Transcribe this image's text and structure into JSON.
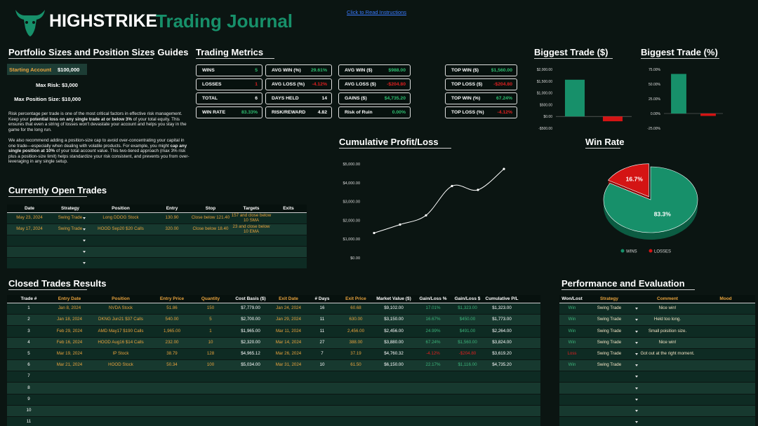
{
  "header": {
    "brand": "HIGHSTRIKE",
    "title": "Trading Journal",
    "link": "Click to Read Instructions"
  },
  "portfolio": {
    "title": "Portfolio Sizes and Position Sizes Guides",
    "rows": [
      [
        "Starting Account",
        "$100,000"
      ],
      [
        "Max Risk:",
        "$3,000"
      ],
      [
        "Max Position Size:",
        "$10,000"
      ]
    ],
    "paragraphs": [
      [
        "Risk percentage per trade is one of the most critical factors in effective risk management. Keep your ",
        "potential loss on any single trade at or below 3%",
        " of your total equity. This ensures that even a string of losses won't devastate your account and helps you stay in the game for the long run."
      ],
      [
        "We also recommend adding a position-size cap to avoid over-concentrating your capital in one trade—especially when dealing with volatile products. For example, you might ",
        "cap any single position at 10%",
        " of your total account value. This two-tiered approach (max 3% risk plus a position-size limit) helps standardize your risk consistent, and prevents you from over-leveraging in any single setup."
      ]
    ]
  },
  "metrics": {
    "title": "Trading Metrics",
    "columns": [
      [
        {
          "label": "WINS",
          "value": "5",
          "color": "#2fbf71"
        },
        {
          "label": "LOSSES",
          "value": "1",
          "color": "#e02020"
        },
        {
          "label": "TOTAL",
          "value": "6",
          "color": "#ffffff"
        },
        {
          "label": "WIN RATE",
          "value": "83.33%",
          "color": "#2fbf71"
        }
      ],
      [
        {
          "label": "AVG WIN (%)",
          "value": "29.61%",
          "color": "#2fbf71"
        },
        {
          "label": "AVG LOSS (%)",
          "value": "-4.12%",
          "color": "#e02020"
        },
        {
          "label": "DAYS HELD",
          "value": "14",
          "color": "#ffffff"
        },
        {
          "label": "RISK/REWARD",
          "value": "4.82",
          "color": "#ffffff"
        }
      ],
      [
        {
          "label": "AVG WIN ($)",
          "value": "$988.00",
          "color": "#2fbf71"
        },
        {
          "label": "AVG LOSS ($)",
          "value": "-$204.80",
          "color": "#e02020"
        },
        {
          "label": "GAINS ($)",
          "value": "$4,735.20",
          "color": "#2fbf71"
        },
        {
          "label": "Risk of Ruin",
          "value": "0.00%",
          "color": "#2fbf71"
        }
      ],
      [
        {
          "label": "TOP WIN ($)",
          "value": "$1,560.00",
          "color": "#2fbf71"
        },
        {
          "label": "TOP LOSS ($)",
          "value": "-$204.80",
          "color": "#e02020"
        },
        {
          "label": "TOP WIN (%)",
          "value": "67.24%",
          "color": "#2fbf71"
        },
        {
          "label": "TOP LOSS (%)",
          "value": "-4.12%",
          "color": "#e02020"
        }
      ]
    ]
  },
  "open_trades": {
    "title": "Currently Open Trades",
    "columns": [
      "Date",
      "Strategy",
      "Position",
      "Entry",
      "Stop",
      "Targets",
      "Exits"
    ],
    "rows": [
      [
        "May 23, 2024",
        "Swing Trade",
        "Long DDOG Stock",
        "130.90",
        "Close below 121.40",
        "157 and close below 10 SMA",
        null
      ],
      [
        "May 17, 2024",
        "Swing Trade",
        "HOOD Sep20 $20 Calls",
        "320.00",
        "Close below 18.40",
        "23 and close below 10 EMA",
        null
      ],
      [
        null,
        null,
        null,
        null,
        null,
        null,
        null
      ],
      [
        null,
        null,
        null,
        null,
        null,
        null,
        null
      ],
      [
        null,
        null,
        null,
        null,
        null,
        null,
        null
      ]
    ]
  },
  "closed_trades": {
    "title": "Closed Trades Results",
    "columns": [
      "Trade #",
      "Entry Date",
      "Position",
      "Entry Price",
      "Quantity",
      "Cost Basis ($)",
      "Exit Date",
      "# Days",
      "Exit Price",
      "Market Value ($)",
      "Gain/Loss %",
      "Gain/Loss $",
      "Cumulative P/L"
    ],
    "rows": [
      [
        1,
        "Jan 8, 2024",
        "NVDA Stock",
        "51.86",
        "150",
        "$7,779.00",
        "Jan 24, 2024",
        "16",
        "60.68",
        "$9,102.00",
        "17.01%",
        "$1,323.00",
        "$1,323.00"
      ],
      [
        2,
        "Jan 18, 2024",
        "DKNG Jun21 $37 Calls",
        "540.00",
        "5",
        "$2,700.00",
        "Jan 29, 2024",
        "11",
        "630.00",
        "$3,150.00",
        "16.67%",
        "$450.00",
        "$1,773.00"
      ],
      [
        3,
        "Feb 29, 2024",
        "AMD May17 $190 Calls",
        "1,965.00",
        "1",
        "$1,965.00",
        "Mar 11, 2024",
        "11",
        "2,456.00",
        "$2,456.00",
        "24.99%",
        "$491.00",
        "$2,264.00"
      ],
      [
        4,
        "Feb 16, 2024",
        "HOOD Aug16 $14 Calls",
        "232.00",
        "10",
        "$2,320.00",
        "Mar 14, 2024",
        "27",
        "388.00",
        "$3,880.00",
        "67.24%",
        "$1,560.00",
        "$3,824.00"
      ],
      [
        5,
        "Mar 19, 2024",
        "IP Stock",
        "38.79",
        "128",
        "$4,965.12",
        "Mar 26, 2024",
        "7",
        "37.19",
        "$4,760.32",
        "-4.12%",
        "-$204.80",
        "$3,619.20"
      ],
      [
        6,
        "Mar 21, 2024",
        "HOOD Stock",
        "50.34",
        "100",
        "$5,034.00",
        "Mar 31, 2024",
        "10",
        "61.50",
        "$6,150.00",
        "22.17%",
        "$1,116.00",
        "$4,735.20"
      ],
      [
        7,
        null,
        null,
        null,
        null,
        null,
        null,
        null,
        null,
        null,
        null,
        null,
        null
      ],
      [
        8,
        null,
        null,
        null,
        null,
        null,
        null,
        null,
        null,
        null,
        null,
        null,
        null
      ],
      [
        9,
        null,
        null,
        null,
        null,
        null,
        null,
        null,
        null,
        null,
        null,
        null,
        null
      ],
      [
        10,
        null,
        null,
        null,
        null,
        null,
        null,
        null,
        null,
        null,
        null,
        null,
        null
      ],
      [
        11,
        null,
        null,
        null,
        null,
        null,
        null,
        null,
        null,
        null,
        null,
        null,
        null
      ]
    ]
  },
  "performance": {
    "title": "Performance and Evaluation",
    "columns": [
      "Won/Lost",
      "Strategy",
      "Comment",
      "Mood"
    ],
    "rows": [
      [
        "Win",
        "Swing Trade",
        "Nice win!",
        null
      ],
      [
        "Win",
        "Swing Trade",
        "Held too long.",
        null
      ],
      [
        "Win",
        "Swing Trade",
        "Small poisition size.",
        null
      ],
      [
        "Win",
        "Swing Trade",
        "Nice win!",
        null
      ],
      [
        "Loss",
        "Swing Trade",
        "Got out at the right moment.",
        null
      ],
      [
        "Win",
        "Swing Trade",
        null,
        null
      ],
      [
        null,
        null,
        null,
        null
      ],
      [
        null,
        null,
        null,
        null
      ],
      [
        null,
        null,
        null,
        null
      ],
      [
        null,
        null,
        null,
        null
      ],
      [
        null,
        null,
        null,
        null
      ]
    ]
  },
  "chart_data": [
    {
      "type": "line",
      "title": "Cumulative Profit/Loss",
      "values": [
        1323,
        1773,
        2264,
        3824,
        3619.2,
        4735.2
      ],
      "color": "#ffffff",
      "ylim": [
        0,
        5000
      ],
      "yticks": [
        {
          "value": 0,
          "label": "$0.00"
        },
        {
          "value": 1000,
          "label": "$1,000.00"
        },
        {
          "value": 2000,
          "label": "$2,000.00"
        },
        {
          "value": 3000,
          "label": "$3,000.00"
        },
        {
          "value": 4000,
          "label": "$4,000.00"
        },
        {
          "value": 5000,
          "label": "$5,000.00"
        }
      ]
    },
    {
      "type": "bar",
      "title": "Biggest Trade ($)",
      "values": [
        1560,
        -204.8
      ],
      "colors": [
        "#17906a",
        "#d41414"
      ],
      "ylim": [
        -500,
        2000
      ],
      "yticks": [
        {
          "value": -500,
          "label": "-$500.00"
        },
        {
          "value": 0,
          "label": "$0.00"
        },
        {
          "value": 500,
          "label": "$500.00"
        },
        {
          "value": 1000,
          "label": "$1,000.00"
        },
        {
          "value": 1500,
          "label": "$1,500.00"
        },
        {
          "value": 2000,
          "label": "$2,000.00"
        }
      ]
    },
    {
      "type": "bar",
      "title": "Biggest Trade (%)",
      "values": [
        67.24,
        -4.12
      ],
      "colors": [
        "#17906a",
        "#d41414"
      ],
      "ylim": [
        -25,
        75
      ],
      "yticks": [
        {
          "value": -25,
          "label": "-25.00%"
        },
        {
          "value": 0,
          "label": "0.00%"
        },
        {
          "value": 25,
          "label": "25.00%"
        },
        {
          "value": 50,
          "label": "50.00%"
        },
        {
          "value": 75,
          "label": "75.00%"
        }
      ]
    },
    {
      "type": "pie",
      "title": "Win Rate",
      "categories": [
        "WINS",
        "LOSSES"
      ],
      "values": [
        83.33,
        16.67
      ],
      "value_labels": [
        "83.3%",
        "16.7%"
      ],
      "colors": [
        "#17906a",
        "#d41414"
      ],
      "legend": "bottom"
    }
  ]
}
